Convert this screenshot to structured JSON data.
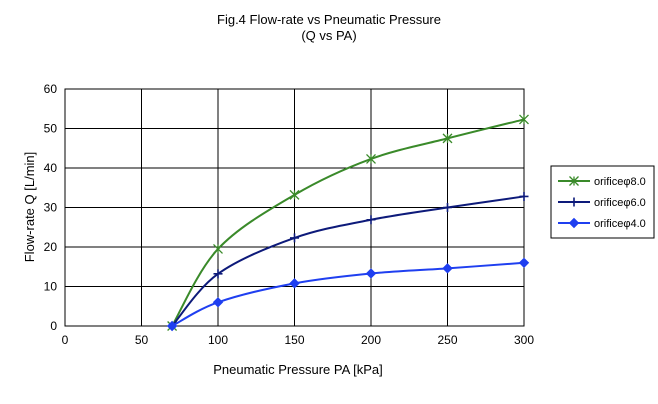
{
  "chart_data": {
    "type": "line",
    "title": "Fig.4 Flow-rate vs Pneumatic Pressure",
    "subtitle": "(Q vs PA)",
    "xlabel": "Pneumatic Pressure PA [kPa]",
    "ylabel": "Flow-rate Q [L/min]",
    "xlim": [
      0,
      300
    ],
    "ylim": [
      0,
      60
    ],
    "xticks": [
      "0",
      "50",
      "100",
      "150",
      "200",
      "250",
      "300"
    ],
    "yticks": [
      "0",
      "10",
      "20",
      "30",
      "40",
      "50",
      "60"
    ],
    "grid": true,
    "legend_position": "right",
    "series": [
      {
        "name": "orificeφ8.0",
        "color": "#3a8a2a",
        "marker": "x-star",
        "x": [
          70,
          100,
          150,
          200,
          250,
          300
        ],
        "y": [
          0,
          19.5,
          33.2,
          42.3,
          47.5,
          52.3
        ]
      },
      {
        "name": "orificeφ6.0",
        "color": "#0d1a7a",
        "marker": "plus",
        "x": [
          70,
          100,
          150,
          200,
          250,
          300
        ],
        "y": [
          0,
          13.2,
          22.3,
          26.9,
          30.0,
          32.8
        ]
      },
      {
        "name": "orificeφ4.0",
        "color": "#1f3ff0",
        "marker": "diamond",
        "x": [
          70,
          100,
          150,
          200,
          250,
          300
        ],
        "y": [
          0,
          6.0,
          10.8,
          13.3,
          14.6,
          16.0
        ]
      }
    ]
  }
}
